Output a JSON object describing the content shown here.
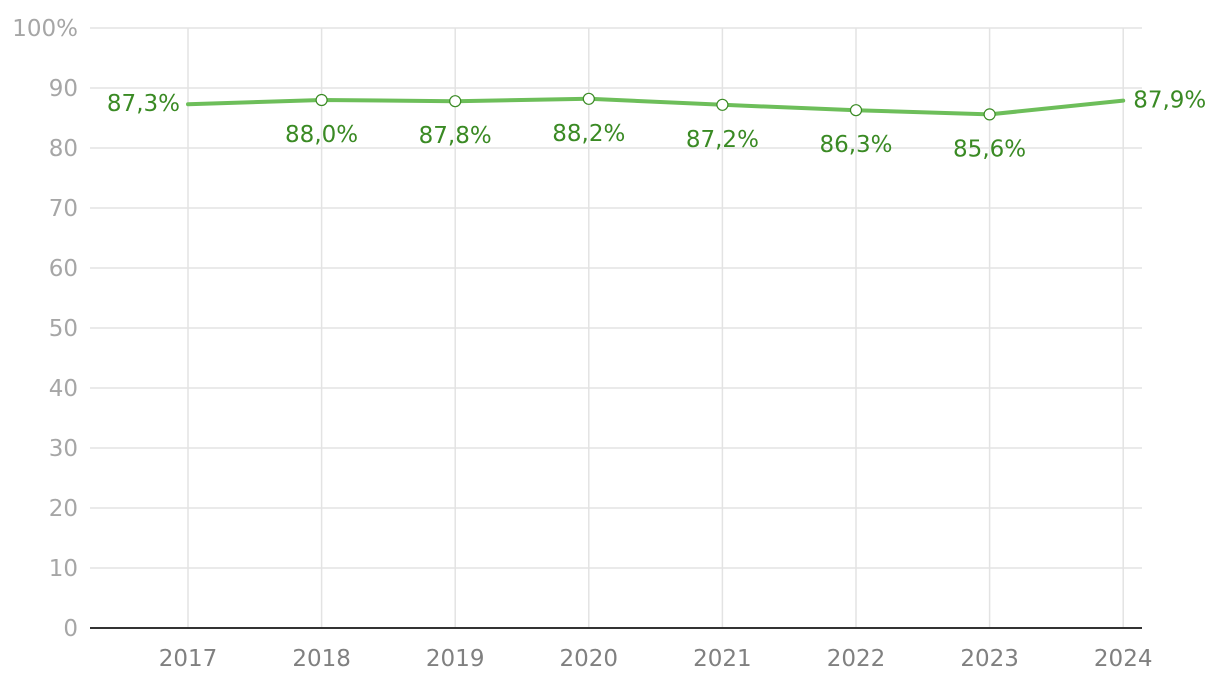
{
  "chart_data": {
    "type": "line",
    "title": "",
    "xlabel": "",
    "ylabel": "",
    "categories": [
      "2017",
      "2018",
      "2019",
      "2020",
      "2021",
      "2022",
      "2023",
      "2024"
    ],
    "series": [
      {
        "values": [
          87.3,
          88.0,
          87.8,
          88.2,
          87.2,
          86.3,
          85.6,
          87.9
        ],
        "labels": [
          "87,3%",
          "88,0%",
          "87,8%",
          "88,2%",
          "87,2%",
          "86,3%",
          "85,6%",
          "87,9%"
        ],
        "color": "#6dbe5a",
        "label_color": "#3a8a24"
      }
    ],
    "ylim": [
      0,
      100
    ],
    "yticks": [
      "0",
      "10",
      "20",
      "30",
      "40",
      "50",
      "60",
      "70",
      "80",
      "90",
      "100%"
    ],
    "grid": true,
    "legend": "none"
  }
}
